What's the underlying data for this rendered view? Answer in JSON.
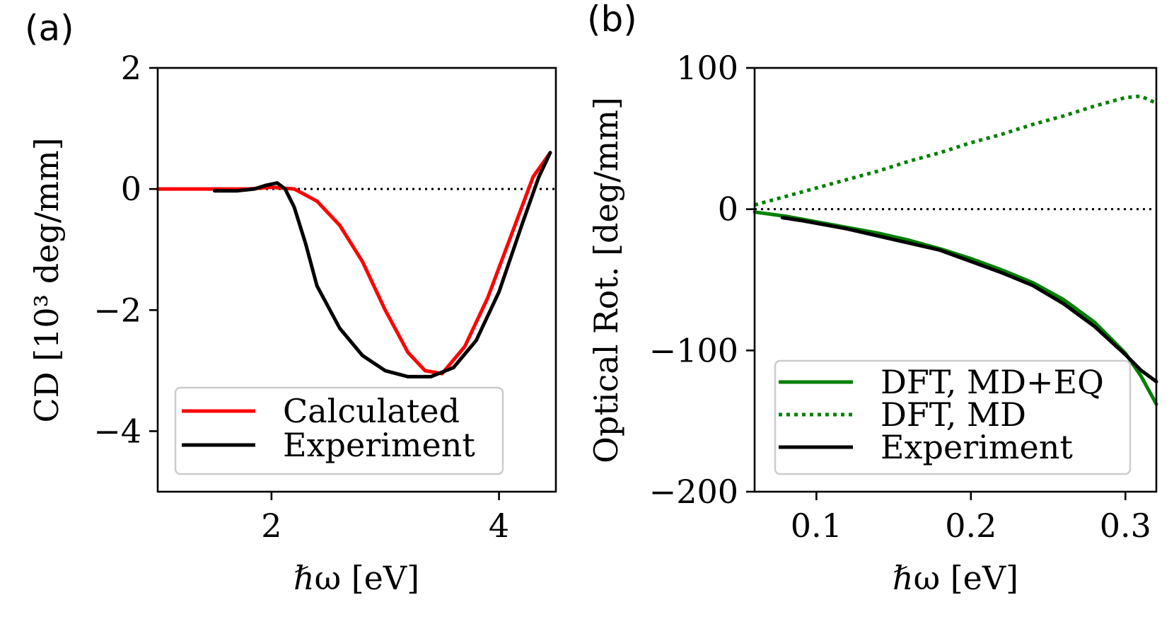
{
  "chart_data": [
    {
      "panel_label": "(a)",
      "type": "line",
      "xlabel": "ℏω [eV]",
      "ylabel": "CD [10³ deg/mm]",
      "xlim": [
        1.0,
        4.5
      ],
      "ylim": [
        -5,
        2
      ],
      "xticks": [
        2,
        4
      ],
      "yticks": [
        2,
        0,
        -2,
        -4
      ],
      "xtick_labels": [
        "2",
        "4"
      ],
      "ytick_labels": [
        "2",
        "0",
        "−2",
        "−4"
      ],
      "reference_line": {
        "y": 0,
        "style": "dotted",
        "color": "#000000"
      },
      "legend": {
        "position": "lower-left"
      },
      "series": [
        {
          "name": "Calculated",
          "color": "#ff0000",
          "style": "solid",
          "x": [
            1.0,
            1.5,
            1.8,
            2.0,
            2.2,
            2.4,
            2.6,
            2.8,
            3.0,
            3.2,
            3.35,
            3.5,
            3.7,
            3.9,
            4.1,
            4.3,
            4.45
          ],
          "y": [
            0.0,
            0.0,
            0.0,
            0.03,
            0.0,
            -0.2,
            -0.6,
            -1.2,
            -2.0,
            -2.7,
            -3.0,
            -3.05,
            -2.6,
            -1.8,
            -0.8,
            0.2,
            0.6
          ]
        },
        {
          "name": "Experiment",
          "color": "#000000",
          "style": "solid",
          "x": [
            1.5,
            1.7,
            1.85,
            1.95,
            2.05,
            2.12,
            2.2,
            2.3,
            2.4,
            2.6,
            2.8,
            3.0,
            3.2,
            3.4,
            3.6,
            3.8,
            4.0,
            4.2,
            4.35,
            4.45
          ],
          "y": [
            -0.03,
            -0.03,
            0.0,
            0.06,
            0.1,
            0.0,
            -0.3,
            -0.9,
            -1.6,
            -2.3,
            -2.75,
            -3.0,
            -3.1,
            -3.1,
            -2.95,
            -2.5,
            -1.7,
            -0.6,
            0.2,
            0.6
          ]
        }
      ]
    },
    {
      "panel_label": "(b)",
      "type": "line",
      "xlabel": "ℏω [eV]",
      "ylabel": "Optical Rot. [deg/mm]",
      "xlim": [
        0.06,
        0.32
      ],
      "ylim": [
        -200,
        100
      ],
      "xticks": [
        0.1,
        0.2,
        0.3
      ],
      "yticks": [
        100,
        0,
        -100,
        -200
      ],
      "xtick_labels": [
        "0.1",
        "0.2",
        "0.3"
      ],
      "ytick_labels": [
        "100",
        "0",
        "−100",
        "−200"
      ],
      "reference_line": {
        "y": 0,
        "style": "dotted",
        "color": "#000000"
      },
      "legend": {
        "position": "lower-left"
      },
      "series": [
        {
          "name": "DFT, MD+EQ",
          "color": "#008000",
          "style": "solid",
          "x": [
            0.06,
            0.08,
            0.1,
            0.12,
            0.14,
            0.16,
            0.18,
            0.2,
            0.22,
            0.24,
            0.26,
            0.28,
            0.3,
            0.31,
            0.32
          ],
          "y": [
            -2,
            -5,
            -9,
            -13,
            -17,
            -22,
            -28,
            -35,
            -43,
            -52,
            -64,
            -80,
            -102,
            -118,
            -138
          ]
        },
        {
          "name": "DFT, MD",
          "color": "#008000",
          "style": "dotted",
          "x": [
            0.06,
            0.08,
            0.1,
            0.12,
            0.14,
            0.16,
            0.18,
            0.2,
            0.22,
            0.24,
            0.26,
            0.28,
            0.3,
            0.31,
            0.32
          ],
          "y": [
            3,
            9,
            15,
            21,
            27,
            34,
            40,
            47,
            53,
            60,
            66,
            73,
            79,
            80,
            75
          ]
        },
        {
          "name": "Experiment",
          "color": "#000000",
          "style": "solid",
          "x": [
            0.078,
            0.09,
            0.1,
            0.12,
            0.14,
            0.16,
            0.18,
            0.2,
            0.22,
            0.24,
            0.26,
            0.28,
            0.3,
            0.31,
            0.32
          ],
          "y": [
            -6,
            -8,
            -10,
            -14,
            -19,
            -24,
            -29,
            -37,
            -45,
            -54,
            -67,
            -83,
            -103,
            -114,
            -122
          ]
        }
      ]
    }
  ]
}
